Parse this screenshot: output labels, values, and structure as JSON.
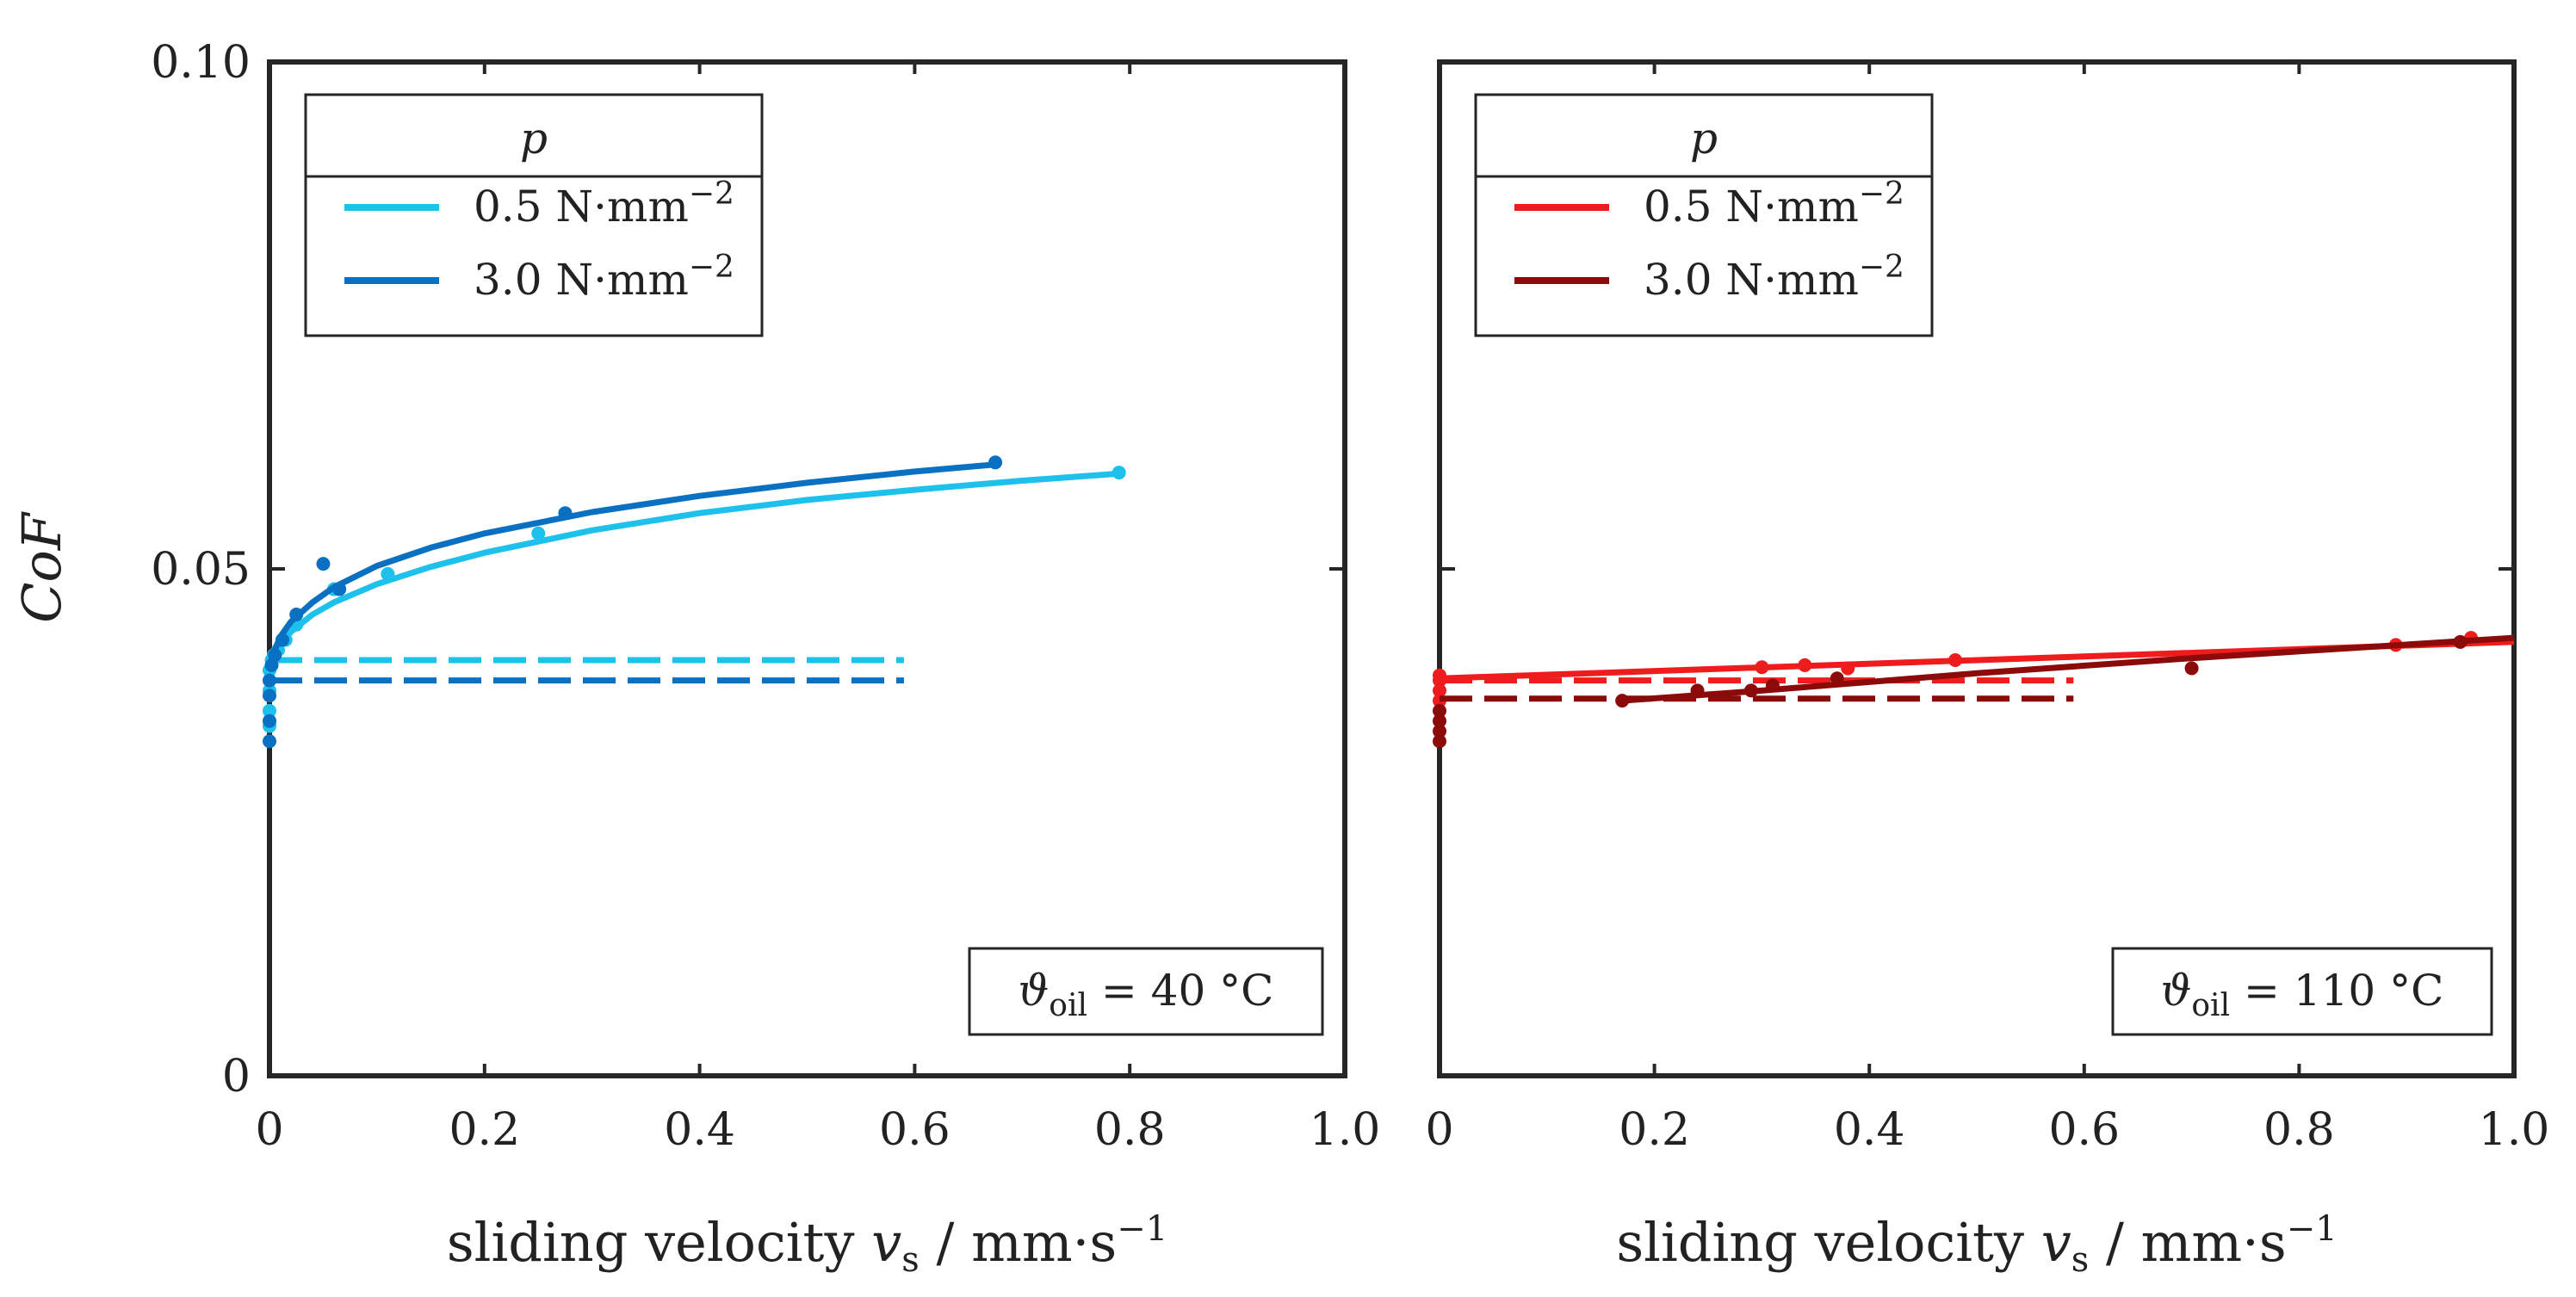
{
  "chart_data": [
    {
      "type": "scatter",
      "panel": "left",
      "xlabel": {
        "main": "sliding velocity ",
        "var": "v",
        "sub": "s",
        "unit": " / mm·s",
        "sup": "−1"
      },
      "ylabel": "CoF",
      "xlim": [
        0,
        1.0
      ],
      "ylim": [
        0,
        0.1
      ],
      "xticks": [
        "0",
        "0.2",
        "0.4",
        "0.6",
        "0.8",
        "1.0"
      ],
      "xtick_values": [
        0,
        0.2,
        0.4,
        0.6,
        0.8,
        1.0
      ],
      "yticks": [
        "0",
        "0.05",
        "0.10"
      ],
      "ytick_values": [
        0,
        0.05,
        0.1
      ],
      "legend": {
        "title": "p",
        "position": "top-left"
      },
      "annotation": {
        "symbol": "ϑ",
        "sub": "oil",
        "text": " = 40 °C"
      },
      "series": [
        {
          "name": "0.5 N·mm",
          "sup": "−2",
          "color": "#1ec0ec",
          "points": [
            [
              0.0,
              0.0345
            ],
            [
              0.0,
              0.036
            ],
            [
              0.0,
              0.038
            ],
            [
              0.0,
              0.04
            ],
            [
              0.002,
              0.041
            ],
            [
              0.004,
              0.0415
            ],
            [
              0.008,
              0.042
            ],
            [
              0.015,
              0.043
            ],
            [
              0.025,
              0.0445
            ],
            [
              0.06,
              0.048
            ],
            [
              0.11,
              0.0495
            ],
            [
              0.25,
              0.0535
            ],
            [
              0.79,
              0.0595
            ]
          ],
          "fit": [
            [
              0.0,
              0.04
            ],
            [
              0.005,
              0.0415
            ],
            [
              0.01,
              0.0425
            ],
            [
              0.02,
              0.0438
            ],
            [
              0.04,
              0.0455
            ],
            [
              0.06,
              0.0467
            ],
            [
              0.1,
              0.0485
            ],
            [
              0.15,
              0.0502
            ],
            [
              0.2,
              0.0516
            ],
            [
              0.3,
              0.0538
            ],
            [
              0.4,
              0.0555
            ],
            [
              0.5,
              0.0568
            ],
            [
              0.6,
              0.0578
            ],
            [
              0.7,
              0.0587
            ],
            [
              0.79,
              0.0594
            ]
          ],
          "static_cof": 0.041,
          "static_xmax": 0.59
        },
        {
          "name": "3.0 N·mm",
          "sup": "−2",
          "color": "#0a70c2",
          "points": [
            [
              0.0,
              0.033
            ],
            [
              0.0,
              0.035
            ],
            [
              0.0,
              0.0375
            ],
            [
              0.0,
              0.039
            ],
            [
              0.002,
              0.0405
            ],
            [
              0.005,
              0.0415
            ],
            [
              0.012,
              0.043
            ],
            [
              0.025,
              0.0455
            ],
            [
              0.05,
              0.0505
            ],
            [
              0.065,
              0.048
            ],
            [
              0.275,
              0.0555
            ],
            [
              0.675,
              0.0605
            ]
          ],
          "fit": [
            [
              0.0,
              0.04
            ],
            [
              0.005,
              0.042
            ],
            [
              0.01,
              0.0433
            ],
            [
              0.02,
              0.0448
            ],
            [
              0.04,
              0.0467
            ],
            [
              0.06,
              0.0482
            ],
            [
              0.1,
              0.0503
            ],
            [
              0.15,
              0.0521
            ],
            [
              0.2,
              0.0535
            ],
            [
              0.3,
              0.0556
            ],
            [
              0.4,
              0.0572
            ],
            [
              0.5,
              0.0585
            ],
            [
              0.6,
              0.0596
            ],
            [
              0.675,
              0.0603
            ]
          ],
          "static_cof": 0.039,
          "static_xmax": 0.59
        }
      ]
    },
    {
      "type": "scatter",
      "panel": "right",
      "xlabel": {
        "main": "sliding velocity ",
        "var": "v",
        "sub": "s",
        "unit": " / mm·s",
        "sup": "−1"
      },
      "xlim": [
        0,
        1.0
      ],
      "ylim": [
        0,
        0.1
      ],
      "xticks": [
        "0",
        "0.2",
        "0.4",
        "0.6",
        "0.8",
        "1.0"
      ],
      "xtick_values": [
        0,
        0.2,
        0.4,
        0.6,
        0.8,
        1.0
      ],
      "legend": {
        "title": "p",
        "position": "top-left"
      },
      "annotation": {
        "symbol": "ϑ",
        "sub": "oil",
        "text": " = 110 °C"
      },
      "series": [
        {
          "name": "0.5 N·mm",
          "sup": "−2",
          "color": "#ee1c1c",
          "points": [
            [
              0.0,
              0.037
            ],
            [
              0.0,
              0.038
            ],
            [
              0.0,
              0.039
            ],
            [
              0.0,
              0.0395
            ],
            [
              0.3,
              0.0403
            ],
            [
              0.34,
              0.0405
            ],
            [
              0.38,
              0.0402
            ],
            [
              0.48,
              0.041
            ],
            [
              0.89,
              0.0425
            ],
            [
              0.96,
              0.0432
            ]
          ],
          "fit": [
            [
              0.0,
              0.0392
            ],
            [
              1.0,
              0.0428
            ]
          ],
          "static_cof": 0.039,
          "static_xmax": 0.59
        },
        {
          "name": "3.0 N·mm",
          "sup": "−2",
          "color": "#8b0a0a",
          "points": [
            [
              0.0,
              0.033
            ],
            [
              0.0,
              0.034
            ],
            [
              0.0,
              0.035
            ],
            [
              0.0,
              0.036
            ],
            [
              0.17,
              0.037
            ],
            [
              0.24,
              0.038
            ],
            [
              0.29,
              0.038
            ],
            [
              0.31,
              0.0385
            ],
            [
              0.37,
              0.0392
            ],
            [
              0.7,
              0.0402
            ],
            [
              0.95,
              0.0428
            ]
          ],
          "fit": [
            [
              0.17,
              0.037
            ],
            [
              0.3,
              0.038
            ],
            [
              0.5,
              0.0397
            ],
            [
              0.7,
              0.0412
            ],
            [
              1.0,
              0.0432
            ]
          ],
          "static_cof": 0.0372,
          "static_xmax": 0.59
        }
      ]
    }
  ]
}
